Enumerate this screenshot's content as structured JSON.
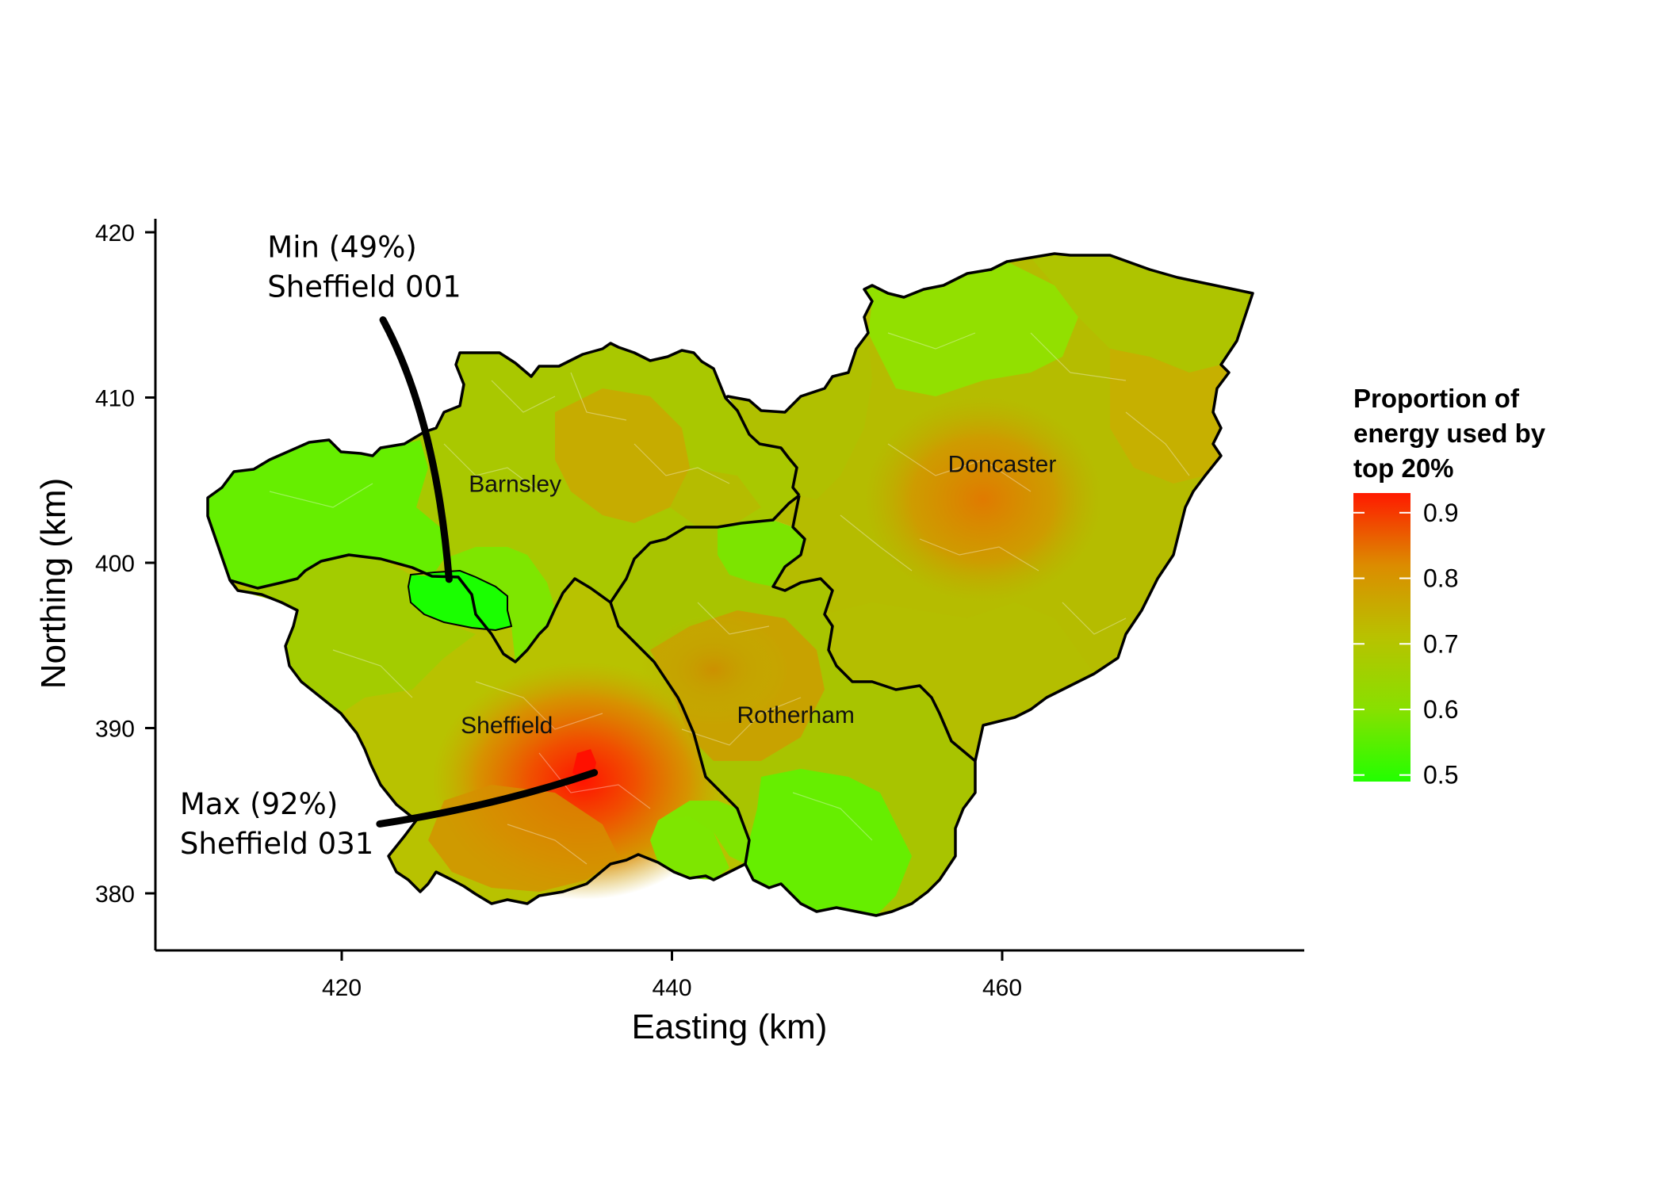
{
  "chart_data": {
    "type": "choropleth",
    "title": "",
    "xlabel": "Easting (km)",
    "ylabel": "Northing (km)",
    "xlim": [
      410,
      479
    ],
    "ylim": [
      376.5,
      421
    ],
    "x_ticks": [
      420,
      440,
      460
    ],
    "y_ticks": [
      380,
      390,
      400,
      410,
      420
    ],
    "legend": {
      "title_lines": [
        "Proportion of",
        "energy used by",
        "top 20%"
      ],
      "range": [
        0.49,
        0.93
      ],
      "ticks": [
        0.5,
        0.6,
        0.7,
        0.8,
        0.9
      ],
      "tick_labels": [
        "0.5",
        "0.6",
        "0.7",
        "0.8",
        "0.9"
      ],
      "placement": "right",
      "low_color": "#22ff00",
      "high_color": "#ff1a00"
    },
    "regions": [
      {
        "name": "Barnsley",
        "label_at": [
          430.5,
          404.3
        ]
      },
      {
        "name": "Doncaster",
        "label_at": [
          460,
          405.5
        ]
      },
      {
        "name": "Sheffield",
        "label_at": [
          430,
          389.7
        ]
      },
      {
        "name": "Rotherham",
        "label_at": [
          447.5,
          390.3
        ]
      }
    ],
    "annotations": [
      {
        "lines": [
          "Min (49%)",
          "Sheffield 001"
        ],
        "value": 0.49,
        "area": "Sheffield 001",
        "label_at": [
          415.5,
          418.5
        ],
        "leader_from": [
          422.5,
          414.7
        ],
        "leader_to": [
          426.5,
          399
        ]
      },
      {
        "lines": [
          "Max (92%)",
          "Sheffield 031"
        ],
        "value": 0.92,
        "area": "Sheffield 031",
        "label_at": [
          410.2,
          384.8
        ],
        "leader_from": [
          422.3,
          384.2
        ],
        "leader_to": [
          435.3,
          387.3
        ]
      }
    ]
  },
  "colors": {
    "axis": "#000000",
    "boundary": "#000000",
    "green": "#66ee00",
    "lime": "#99dd00",
    "olive": "#b8c200",
    "amber": "#c8a800",
    "orange": "#e07800",
    "red": "#ff2000"
  }
}
